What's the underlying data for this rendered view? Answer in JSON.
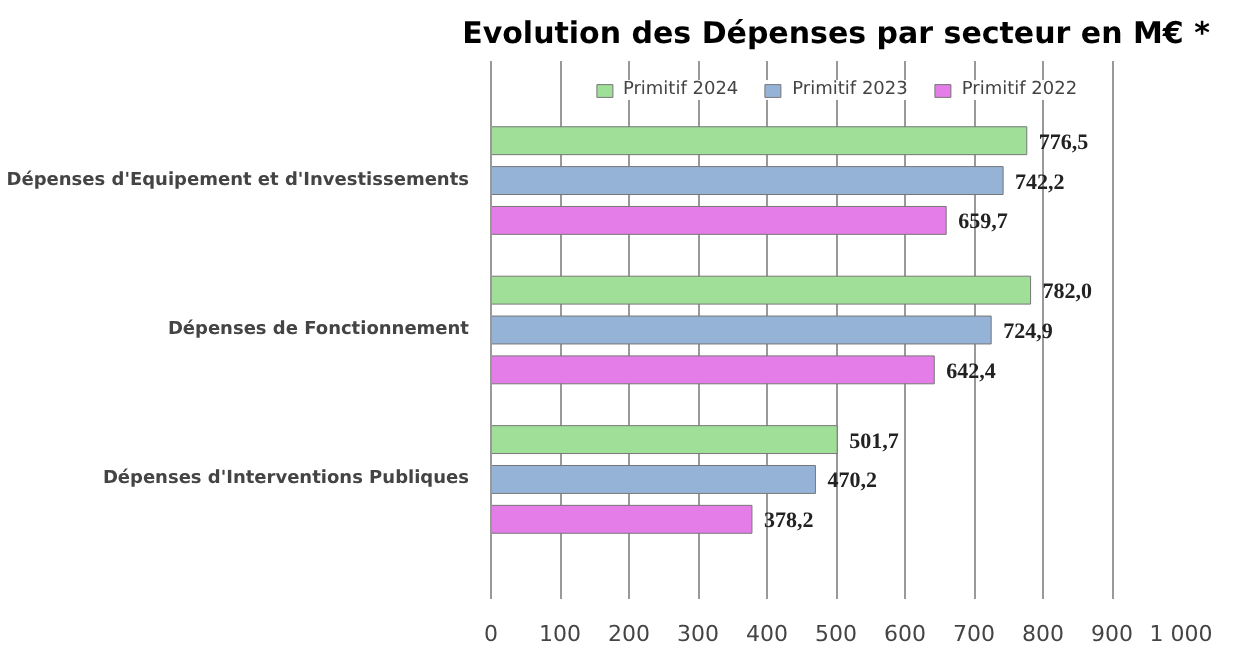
{
  "chart_data": {
    "type": "bar",
    "orientation": "horizontal",
    "title": "Evolution des Dépenses par secteur en M€ *",
    "categories": [
      "Dépenses d'Equipement et d'Investissements",
      "Dépenses de Fonctionnement",
      "Dépenses d'Interventions Publiques"
    ],
    "series": [
      {
        "name": "Primitif 2024",
        "color": "#9fdf97",
        "values": [
          776.5,
          782.0,
          501.7
        ],
        "value_labels": [
          "776,5",
          "782,0",
          "501,7"
        ]
      },
      {
        "name": "Primitif 2023",
        "color": "#95b3d7",
        "values": [
          742.2,
          724.9,
          470.2
        ],
        "value_labels": [
          "742,2",
          "724,9",
          "470,2"
        ]
      },
      {
        "name": "Primitif 2022",
        "color": "#e47de8",
        "values": [
          659.7,
          642.4,
          378.2
        ],
        "value_labels": [
          "659,7",
          "642,4",
          "378,2"
        ]
      }
    ],
    "xlim": [
      0,
      1000
    ],
    "xticks": [
      0,
      100,
      200,
      300,
      400,
      500,
      600,
      700,
      800,
      900,
      {
        "value": 1000,
        "label": "1 000"
      }
    ],
    "grid": "x",
    "legend": "top"
  }
}
